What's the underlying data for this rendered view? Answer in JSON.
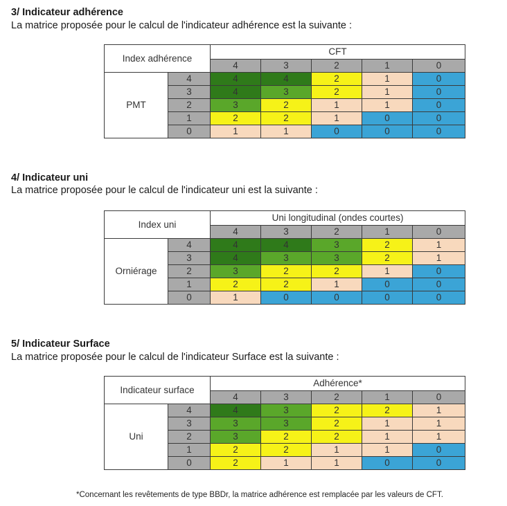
{
  "sections": [
    {
      "title": "3/ Indicateur adhérence",
      "description": "La matrice proposée pour le calcul de l'indicateur adhérence est la suivante :",
      "corner_label": "Index adhérence",
      "col_title": "CFT",
      "row_title": "PMT",
      "col_headers": [
        "4",
        "3",
        "2",
        "1",
        "0"
      ],
      "row_headers": [
        "4",
        "3",
        "2",
        "1",
        "0"
      ],
      "cells": [
        [
          "4",
          "4",
          "2",
          "1",
          "0"
        ],
        [
          "4",
          "3",
          "2",
          "1",
          "0"
        ],
        [
          "3",
          "2",
          "1",
          "1",
          "0"
        ],
        [
          "2",
          "2",
          "1",
          "0",
          "0"
        ],
        [
          "1",
          "1",
          "0",
          "0",
          "0"
        ]
      ]
    },
    {
      "title": "4/ Indicateur uni",
      "description": "La matrice proposée pour le calcul de l'indicateur uni est la suivante :",
      "corner_label": "Index uni",
      "col_title": "Uni longitudinal (ondes courtes)",
      "row_title": "Orniérage",
      "col_headers": [
        "4",
        "3",
        "2",
        "1",
        "0"
      ],
      "row_headers": [
        "4",
        "3",
        "2",
        "1",
        "0"
      ],
      "cells": [
        [
          "4",
          "4",
          "3",
          "2",
          "1"
        ],
        [
          "4",
          "3",
          "3",
          "2",
          "1"
        ],
        [
          "3",
          "2",
          "2",
          "1",
          "0"
        ],
        [
          "2",
          "2",
          "1",
          "0",
          "0"
        ],
        [
          "1",
          "0",
          "0",
          "0",
          "0"
        ]
      ]
    },
    {
      "title": "5/ Indicateur Surface",
      "description": "La matrice proposée pour le calcul de l'indicateur Surface est la suivante :",
      "corner_label": "Indicateur surface",
      "col_title": "Adhérence*",
      "row_title": "Uni",
      "col_headers": [
        "4",
        "3",
        "2",
        "1",
        "0"
      ],
      "row_headers": [
        "4",
        "3",
        "2",
        "1",
        "0"
      ],
      "cells": [
        [
          "4",
          "3",
          "2",
          "2",
          "1"
        ],
        [
          "3",
          "3",
          "2",
          "1",
          "1"
        ],
        [
          "3",
          "2",
          "2",
          "1",
          "1"
        ],
        [
          "2",
          "2",
          "1",
          "1",
          "0"
        ],
        [
          "2",
          "1",
          "1",
          "0",
          "0"
        ]
      ]
    }
  ],
  "footnote": "*Concernant les revêtements de type BBDr, la matrice adhérence est remplacée par les valeurs de CFT.",
  "value_colors": {
    "4": "#2f7a1a",
    "3": "#5aa72a",
    "2": "#f6f218",
    "1": "#f8d9bd",
    "0": "#3ba4d6"
  }
}
